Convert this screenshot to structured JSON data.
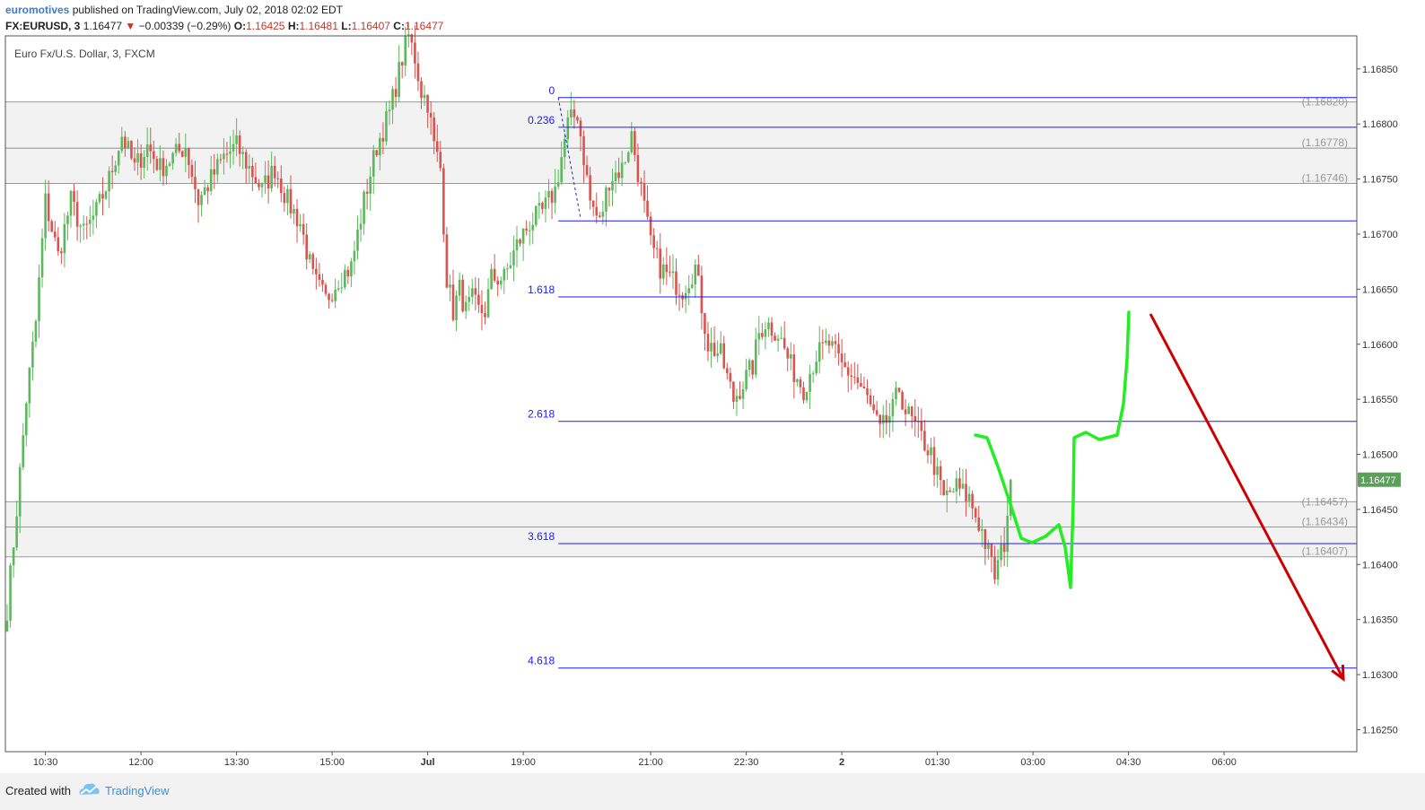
{
  "header": {
    "author": "euromotives",
    "published": "published on TradingView.com, July 02, 2018 02:02 EDT",
    "symbol": "FX:EURUSD, 3",
    "last": "1.16477",
    "change": "−0.00339 (−0.29%)",
    "open_label": "O:",
    "open": "1.16425",
    "high_label": "H:",
    "high": "1.16481",
    "low_label": "L:",
    "low": "1.16407",
    "close_label": "C:",
    "close": "1.16477"
  },
  "chart_data": {
    "type": "candlestick",
    "title": "Euro Fx/U.S. Dollar, 3, FXCM",
    "ylim": [
      1.1623,
      1.1688
    ],
    "y_ticks": [
      "1.16850",
      "1.16800",
      "1.16750",
      "1.16700",
      "1.16650",
      "1.16600",
      "1.16550",
      "1.16500",
      "1.16450",
      "1.16400",
      "1.16350",
      "1.16300",
      "1.16250"
    ],
    "y_tick_values": [
      1.1685,
      1.168,
      1.1675,
      1.167,
      1.1665,
      1.166,
      1.1655,
      1.165,
      1.1645,
      1.164,
      1.1635,
      1.163,
      1.1625
    ],
    "x_ticks": [
      "10:30",
      "12:00",
      "13:30",
      "15:00",
      "Jul",
      "19:00",
      "21:00",
      "22:30",
      "2",
      "01:30",
      "03:00",
      "04:30",
      "06:00"
    ],
    "x_tick_index": [
      12,
      42,
      72,
      102,
      132,
      162,
      202,
      232,
      262,
      292,
      322,
      352,
      382
    ],
    "last_price": "1.16477",
    "last_price_value": 1.16477,
    "zones": [
      {
        "top": 1.1682,
        "bottom": 1.16778,
        "top_label": "(1.16820)",
        "bottom_label": "(1.16778)"
      },
      {
        "top": 1.16778,
        "bottom": 1.16746,
        "top_label": "",
        "bottom_label": "(1.16746)"
      },
      {
        "top": 1.16457,
        "bottom": 1.16434,
        "top_label": "(1.16457)",
        "bottom_label": "(1.16434)"
      },
      {
        "top": 1.16434,
        "bottom": 1.16407,
        "top_label": "",
        "bottom_label": "(1.16407)"
      }
    ],
    "fib_levels": [
      {
        "label": "0",
        "price": 1.16824
      },
      {
        "label": "0.236",
        "price": 1.16797
      },
      {
        "label": "1.618",
        "price": 1.16643
      },
      {
        "label": "2.618",
        "price": 1.1653
      },
      {
        "label": "3.618",
        "price": 1.16419
      },
      {
        "label": "4.618",
        "price": 1.16306
      }
    ],
    "fib_unlabeled_level": 1.16712,
    "fib_anchor": {
      "from_index": 173,
      "from_price": 1.16824,
      "to_index": 180,
      "to_price": 1.16714
    },
    "fib_start_index": 173,
    "ohlc_anchors": [
      [
        0,
        1.1636
      ],
      [
        3,
        1.1645
      ],
      [
        6,
        1.1655
      ],
      [
        9,
        1.1662
      ],
      [
        12,
        1.1673
      ],
      [
        16,
        1.1668
      ],
      [
        20,
        1.1673
      ],
      [
        24,
        1.167
      ],
      [
        28,
        1.1672
      ],
      [
        32,
        1.1675
      ],
      [
        36,
        1.1679
      ],
      [
        40,
        1.1676
      ],
      [
        44,
        1.1678
      ],
      [
        48,
        1.1676
      ],
      [
        52,
        1.1677
      ],
      [
        56,
        1.1678
      ],
      [
        60,
        1.1673
      ],
      [
        64,
        1.1675
      ],
      [
        68,
        1.1677
      ],
      [
        72,
        1.1678
      ],
      [
        76,
        1.1676
      ],
      [
        80,
        1.1674
      ],
      [
        84,
        1.1676
      ],
      [
        88,
        1.1673
      ],
      [
        92,
        1.1671
      ],
      [
        96,
        1.1666
      ],
      [
        100,
        1.1664
      ],
      [
        104,
        1.1666
      ],
      [
        108,
        1.1667
      ],
      [
        112,
        1.1673
      ],
      [
        116,
        1.1678
      ],
      [
        120,
        1.1681
      ],
      [
        124,
        1.1686
      ],
      [
        126,
        1.1688
      ],
      [
        128,
        1.1686
      ],
      [
        130,
        1.1683
      ],
      [
        132,
        1.1682
      ],
      [
        134,
        1.1678
      ],
      [
        136,
        1.1676
      ],
      [
        138,
        1.1666
      ],
      [
        140,
        1.1663
      ],
      [
        142,
        1.1665
      ],
      [
        144,
        1.1663
      ],
      [
        146,
        1.1664
      ],
      [
        148,
        1.1663
      ],
      [
        150,
        1.1663
      ],
      [
        152,
        1.1666
      ],
      [
        156,
        1.1666
      ],
      [
        160,
        1.1669
      ],
      [
        164,
        1.1671
      ],
      [
        168,
        1.1672
      ],
      [
        172,
        1.1674
      ],
      [
        176,
        1.168
      ],
      [
        179,
        1.1681
      ],
      [
        181,
        1.1677
      ],
      [
        183,
        1.1673
      ],
      [
        186,
        1.1671
      ],
      [
        189,
        1.1675
      ],
      [
        193,
        1.1676
      ],
      [
        196,
        1.1679
      ],
      [
        199,
        1.1674
      ],
      [
        202,
        1.1669
      ],
      [
        205,
        1.1667
      ],
      [
        208,
        1.1666
      ],
      [
        212,
        1.1665
      ],
      [
        216,
        1.1667
      ],
      [
        220,
        1.166
      ],
      [
        224,
        1.1659
      ],
      [
        228,
        1.1655
      ],
      [
        232,
        1.1657
      ],
      [
        234,
        1.1658
      ],
      [
        236,
        1.1661
      ],
      [
        238,
        1.1662
      ],
      [
        242,
        1.1661
      ],
      [
        246,
        1.1658
      ],
      [
        250,
        1.1656
      ],
      [
        254,
        1.1659
      ],
      [
        258,
        1.166
      ],
      [
        262,
        1.1658
      ],
      [
        266,
        1.1657
      ],
      [
        270,
        1.1655
      ],
      [
        274,
        1.1652
      ],
      [
        278,
        1.1654
      ],
      [
        280,
        1.1656
      ],
      [
        282,
        1.1654
      ],
      [
        286,
        1.1652
      ],
      [
        290,
        1.165
      ],
      [
        294,
        1.1646
      ],
      [
        298,
        1.1647
      ],
      [
        302,
        1.1646
      ],
      [
        306,
        1.1643
      ],
      [
        308,
        1.1641
      ],
      [
        310,
        1.1639
      ],
      [
        313,
        1.1642
      ],
      [
        315,
        1.16477
      ]
    ],
    "green_path": [
      [
        1087,
        485
      ],
      [
        1100,
        488
      ],
      [
        1112,
        520
      ],
      [
        1127,
        565
      ],
      [
        1138,
        600
      ],
      [
        1150,
        605
      ],
      [
        1165,
        598
      ],
      [
        1180,
        585
      ],
      [
        1187,
        610
      ],
      [
        1193,
        655
      ],
      [
        1196,
        560
      ],
      [
        1197,
        488
      ],
      [
        1210,
        482
      ],
      [
        1225,
        490
      ],
      [
        1245,
        485
      ],
      [
        1252,
        450
      ],
      [
        1256,
        400
      ],
      [
        1258,
        348
      ]
    ],
    "red_arrow": {
      "from": [
        1282,
        350
      ],
      "to": [
        1497,
        757
      ]
    }
  },
  "footer": {
    "created_with": "Created with",
    "brand": "TradingView"
  },
  "colors": {
    "up": "#5cb85c",
    "down": "#d9534f",
    "fib": "#1a1aff",
    "zone": "#f2f2f2",
    "zone_line": "#999999",
    "green_path": "#22ee22",
    "red_arrow": "#cc0000",
    "price_tag": "#5aa05a"
  }
}
